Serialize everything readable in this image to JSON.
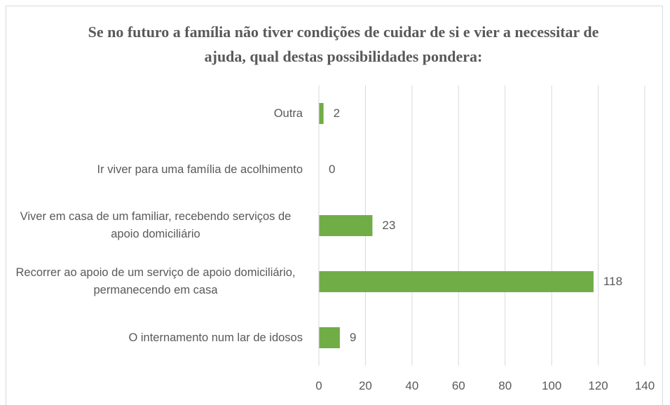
{
  "chart_data": {
    "type": "bar",
    "orientation": "horizontal",
    "title": "Se no futuro a família não tiver condições de cuidar de si e vier a necessitar de ajuda, qual destas possibilidades pondera:",
    "categories": [
      "Outra",
      "Ir viver para uma família de acolhimento",
      "Viver em casa de um familiar, recebendo serviços de apoio domiciliário",
      "Recorrer ao apoio de um serviço de apoio domiciliário, permanecendo em casa",
      "O internamento num lar de idosos"
    ],
    "values": [
      2,
      0,
      23,
      118,
      9
    ],
    "color": "#70ad47",
    "xlim": [
      0,
      140
    ],
    "xticks": [
      0,
      20,
      40,
      60,
      80,
      100,
      120,
      140
    ],
    "grid": true
  }
}
